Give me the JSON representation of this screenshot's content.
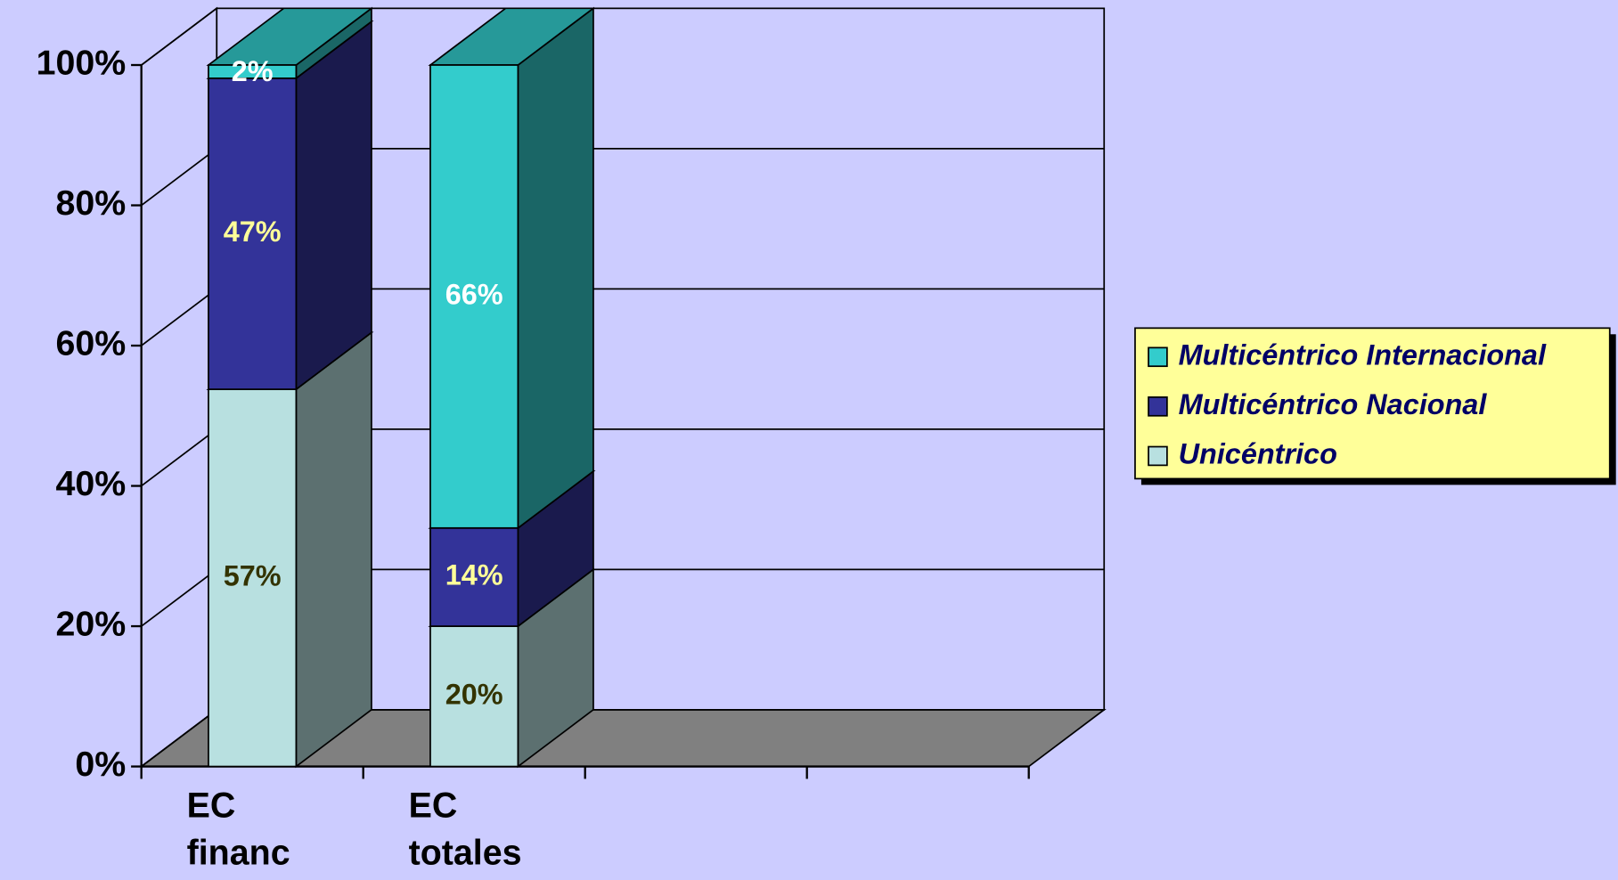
{
  "chart_data": {
    "type": "bar",
    "stack": "percent",
    "categories": [
      "EC financ",
      "EC totales"
    ],
    "series": [
      {
        "name": "Unicéntrico",
        "color": "#b8e0e0",
        "values": [
          57,
          20
        ],
        "value_labels": [
          "57%",
          "20%"
        ]
      },
      {
        "name": "Multicéntrico Nacional",
        "color": "#333399",
        "values": [
          47,
          14
        ],
        "value_labels": [
          "47%",
          "14%"
        ]
      },
      {
        "name": "Multicéntrico Internacional",
        "color": "#33cccc",
        "values": [
          2,
          66
        ],
        "value_labels": [
          "2%",
          "66%"
        ]
      }
    ],
    "ylim": [
      0,
      100
    ],
    "yticks": [
      {
        "value": 0,
        "label": "0%"
      },
      {
        "value": 20,
        "label": "20%"
      },
      {
        "value": 40,
        "label": "40%"
      },
      {
        "value": 60,
        "label": "60%"
      },
      {
        "value": 80,
        "label": "80%"
      },
      {
        "value": 100,
        "label": "100%"
      }
    ],
    "grid": true,
    "legend": "right"
  }
}
